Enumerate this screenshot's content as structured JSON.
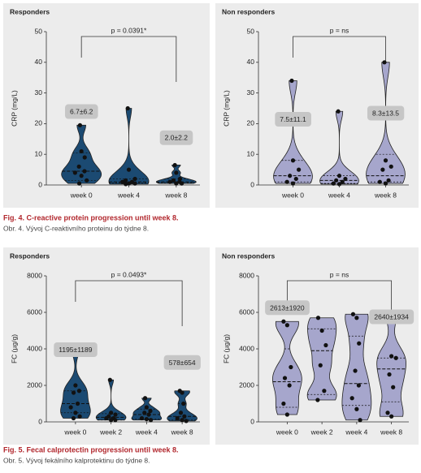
{
  "chart_data": [
    {
      "type": "violin",
      "title": "Responders",
      "ylabel": "CRP (mg/L)",
      "color": "#1b4a72",
      "categories": [
        "week 0",
        "week 4",
        "week 8"
      ],
      "points": [
        [
          19.5,
          11,
          9,
          6,
          4.5,
          4,
          3,
          1.5,
          0.5
        ],
        [
          25,
          5,
          2,
          1.5,
          1,
          1,
          0.5,
          0.5,
          0.3
        ],
        [
          6.5,
          4,
          2,
          1.5,
          1,
          1,
          0.5,
          0.5
        ]
      ],
      "quartiles": [
        [
          1.5,
          4.5,
          10.5
        ],
        [
          0.7,
          1,
          2
        ],
        [
          0.7,
          1,
          2
        ]
      ],
      "value_labels": [
        "6.7±6.2",
        null,
        "2.0±2.2"
      ],
      "bracket": "p = 0.0391*",
      "ylim": [
        0,
        50
      ],
      "yticks": [
        0,
        10,
        20,
        30,
        40,
        50
      ]
    },
    {
      "type": "violin",
      "title": "Non responders",
      "ylabel": "CRP (mg/L)",
      "color": "#a6a6cc",
      "categories": [
        "week 0",
        "week 4",
        "week 8"
      ],
      "points": [
        [
          34,
          8,
          5,
          3,
          2,
          1,
          0.5
        ],
        [
          24,
          3,
          2,
          1.5,
          1,
          0.5,
          0.3
        ],
        [
          40,
          8,
          6,
          5,
          1.5,
          1,
          0.5
        ]
      ],
      "quartiles": [
        [
          1,
          3,
          8
        ],
        [
          0.5,
          1.5,
          3
        ],
        [
          1,
          3,
          10
        ]
      ],
      "value_labels": [
        "7.5±11.1",
        null,
        "8.3±13.5"
      ],
      "bracket": "p = ns",
      "ylim": [
        0,
        50
      ],
      "yticks": [
        0,
        10,
        20,
        30,
        40,
        50
      ]
    },
    {
      "type": "violin",
      "title": "Responders",
      "ylabel": "FC (µg/g)",
      "color": "#1b4a72",
      "categories": [
        "week 0",
        "week 2",
        "week 4",
        "week 8"
      ],
      "points": [
        [
          4000,
          2000,
          1700,
          1600,
          1000,
          800,
          500,
          300,
          200
        ],
        [
          2300,
          500,
          400,
          300,
          200,
          200,
          100,
          100
        ],
        [
          1300,
          800,
          600,
          500,
          400,
          200,
          150,
          100
        ],
        [
          1700,
          1600,
          1000,
          500,
          300,
          200,
          100,
          50
        ]
      ],
      "quartiles": [
        [
          500,
          1000,
          1700
        ],
        [
          100,
          250,
          450
        ],
        [
          150,
          400,
          700
        ],
        [
          100,
          300,
          1000
        ]
      ],
      "value_labels": [
        "1195±1189",
        null,
        null,
        "578±654"
      ],
      "bracket": "p = 0.0493*",
      "ylim": [
        0,
        8000
      ],
      "yticks": [
        0,
        2000,
        4000,
        6000,
        8000
      ]
    },
    {
      "type": "violin",
      "title": "Non responders",
      "ylabel": "FC (µg/g)",
      "color": "#a6a6cc",
      "categories": [
        "week 0",
        "week 2",
        "week 4",
        "week 8"
      ],
      "points": [
        [
          5500,
          5300,
          3000,
          2400,
          2000,
          1000,
          400
        ],
        [
          5700,
          5000,
          4200,
          3100,
          1700,
          1200
        ],
        [
          5900,
          5700,
          4300,
          2800,
          2000,
          1300,
          700,
          100
        ],
        [
          6000,
          3600,
          3500,
          2600,
          1900,
          500,
          300
        ]
      ],
      "quartiles": [
        [
          800,
          2200,
          4000
        ],
        [
          1500,
          3900,
          5100
        ],
        [
          900,
          2100,
          4700
        ],
        [
          1100,
          2900,
          3500
        ]
      ],
      "value_labels": [
        "2613±1920",
        null,
        null,
        "2640±1934"
      ],
      "bracket": "p = ns",
      "ylim": [
        0,
        8000
      ],
      "yticks": [
        0,
        2000,
        4000,
        6000,
        8000
      ]
    }
  ],
  "captions": [
    {
      "title": "Fig. 4. C-reactive protein progression until week 8.",
      "subtitle": "Obr. 4. Vývoj C-reaktivního proteinu do týdne 8."
    },
    {
      "title": "Fig. 5. Fecal calprotectin progression until week 8.",
      "subtitle": "Obr. 5. Vývoj fekálního kalprotektinu do týdne 8."
    }
  ]
}
